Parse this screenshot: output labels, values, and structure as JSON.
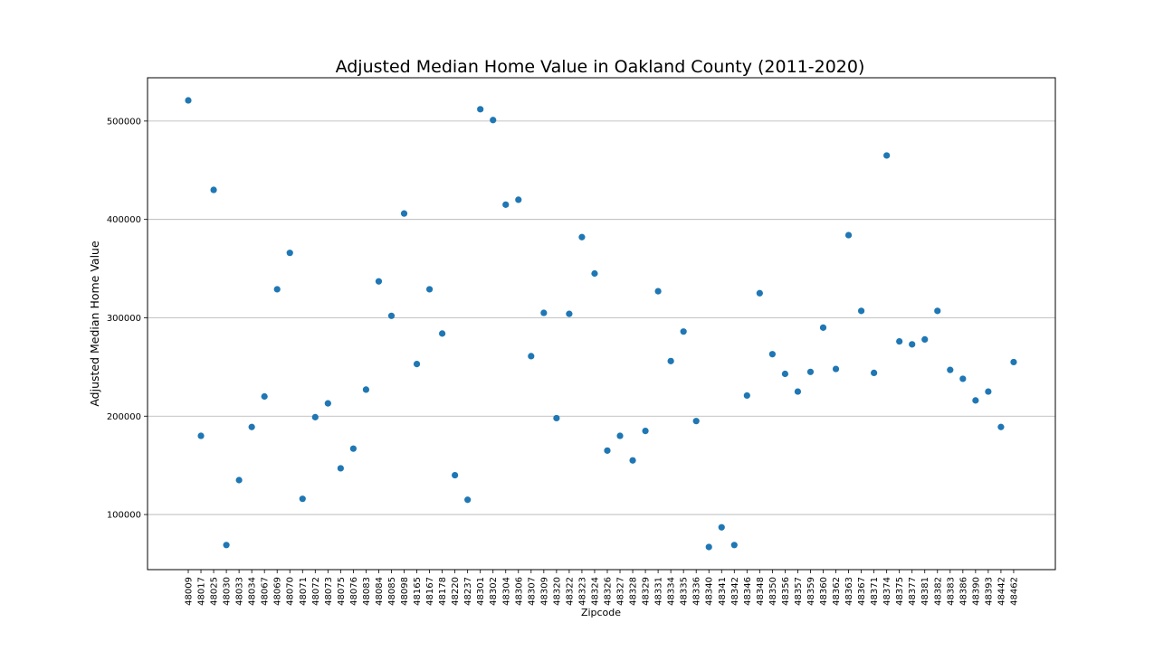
{
  "chart_data": {
    "type": "scatter",
    "title": "Adjusted Median Home Value in Oakland County (2011-2020)",
    "xlabel": "Zipcode",
    "ylabel": "Adjusted Median Home Value",
    "ylim": [
      44000,
      544000
    ],
    "yticks": [
      100000,
      200000,
      300000,
      400000,
      500000
    ],
    "ytick_labels": [
      "100000",
      "200000",
      "300000",
      "400000",
      "500000"
    ],
    "grid": "horizontal",
    "point_color": "#1f77b4",
    "x": [
      "48009",
      "48017",
      "48025",
      "48030",
      "48033",
      "48034",
      "48067",
      "48069",
      "48070",
      "48071",
      "48072",
      "48073",
      "48075",
      "48076",
      "48083",
      "48084",
      "48085",
      "48098",
      "48165",
      "48167",
      "48178",
      "48220",
      "48237",
      "48301",
      "48302",
      "48304",
      "48306",
      "48307",
      "48309",
      "48320",
      "48322",
      "48323",
      "48324",
      "48326",
      "48327",
      "48328",
      "48329",
      "48331",
      "48334",
      "48335",
      "48336",
      "48340",
      "48341",
      "48342",
      "48346",
      "48348",
      "48350",
      "48356",
      "48357",
      "48359",
      "48360",
      "48362",
      "48363",
      "48367",
      "48371",
      "48374",
      "48375",
      "48377",
      "48381",
      "48382",
      "48383",
      "48386",
      "48390",
      "48393",
      "48442",
      "48462"
    ],
    "y": [
      521000,
      180000,
      430000,
      69000,
      135000,
      189000,
      220000,
      329000,
      366000,
      116000,
      199000,
      213000,
      147000,
      167000,
      227000,
      337000,
      302000,
      406000,
      253000,
      329000,
      284000,
      140000,
      115000,
      512000,
      501000,
      415000,
      420000,
      261000,
      305000,
      198000,
      304000,
      382000,
      345000,
      165000,
      180000,
      155000,
      185000,
      327000,
      256000,
      286000,
      195000,
      67000,
      87000,
      69000,
      221000,
      325000,
      263000,
      243000,
      225000,
      245000,
      290000,
      248000,
      384000,
      307000,
      244000,
      465000,
      276000,
      273000,
      278000,
      307000,
      247000,
      238000,
      216000,
      225000,
      189000,
      255000
    ]
  }
}
